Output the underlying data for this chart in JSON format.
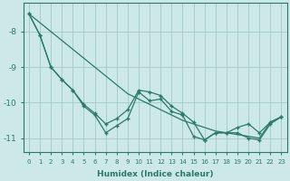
{
  "xlabel": "Humidex (Indice chaleur)",
  "x": [
    0,
    1,
    2,
    3,
    4,
    5,
    6,
    7,
    8,
    9,
    10,
    11,
    12,
    13,
    14,
    15,
    16,
    17,
    18,
    19,
    20,
    21,
    22,
    23
  ],
  "line_straight": [
    -7.5,
    -7.75,
    -8.0,
    -8.25,
    -8.5,
    -8.75,
    -9.0,
    -9.25,
    -9.5,
    -9.75,
    -9.9,
    -10.05,
    -10.2,
    -10.35,
    -10.5,
    -10.6,
    -10.7,
    -10.8,
    -10.85,
    -10.9,
    -10.95,
    -11.0,
    -10.55,
    -10.4
  ],
  "line_wavy1": [
    -7.5,
    -8.1,
    -9.0,
    -9.35,
    -9.65,
    -10.05,
    -10.3,
    -10.6,
    -10.45,
    -10.2,
    -9.65,
    -9.7,
    -9.8,
    -10.1,
    -10.3,
    -10.55,
    -11.05,
    -10.85,
    -10.85,
    -10.7,
    -10.6,
    -10.85,
    -10.55,
    -10.4
  ],
  "line_wavy2": [
    -7.5,
    -8.1,
    -9.0,
    -9.35,
    -9.65,
    -10.1,
    -10.35,
    -10.85,
    -10.65,
    -10.45,
    -9.7,
    -9.95,
    -9.9,
    -10.25,
    -10.35,
    -10.95,
    -11.05,
    -10.85,
    -10.85,
    -10.85,
    -11.0,
    -11.05,
    -10.6,
    -10.4
  ],
  "line_color": "#2a7a6a",
  "bg_color": "#cde8e8",
  "grid_color": "#a0c8c8",
  "ylim": [
    -11.4,
    -7.2
  ],
  "yticks": [
    -8,
    -9,
    -10,
    -11
  ],
  "xticks": [
    0,
    1,
    2,
    3,
    4,
    5,
    6,
    7,
    8,
    9,
    10,
    11,
    12,
    13,
    14,
    15,
    16,
    17,
    18,
    19,
    20,
    21,
    22,
    23
  ]
}
